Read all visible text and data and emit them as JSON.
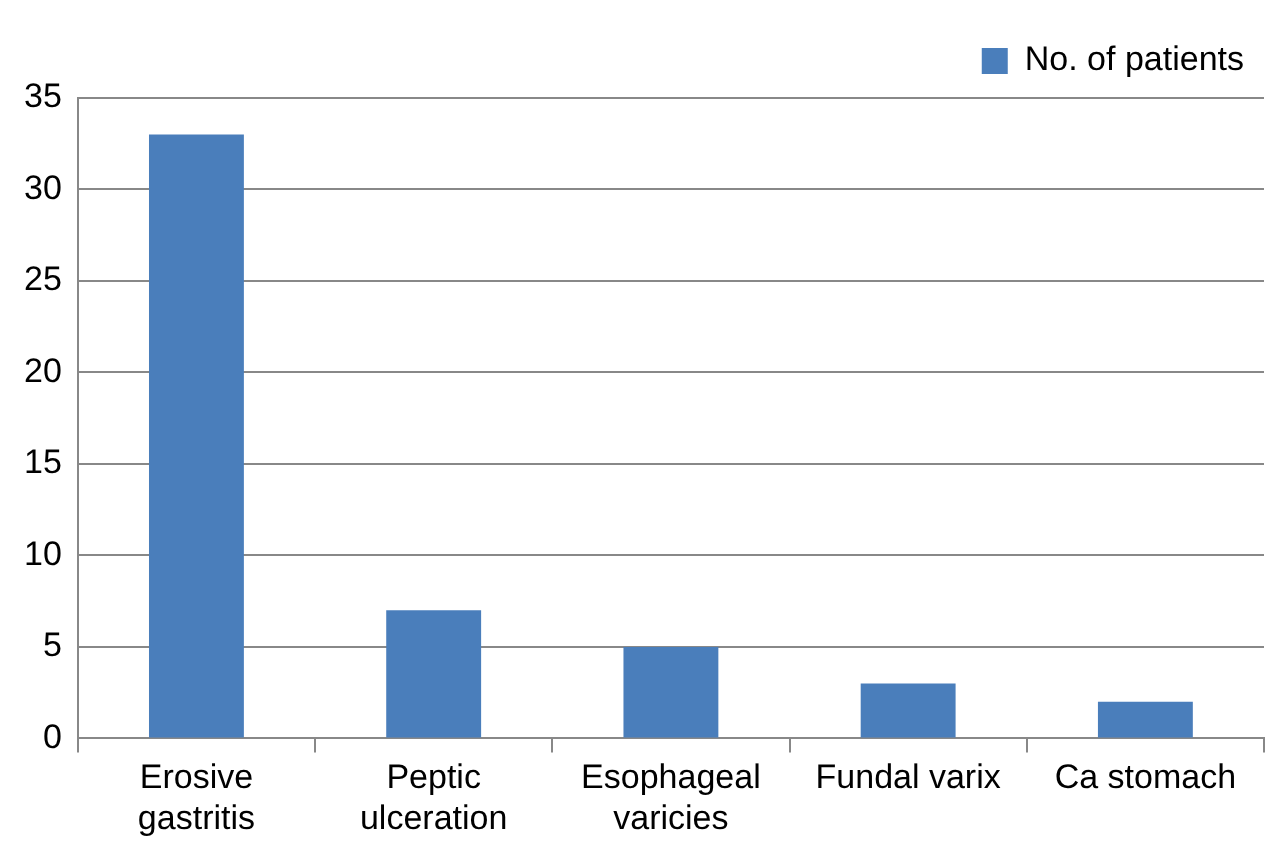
{
  "chart_data": {
    "type": "bar",
    "categories": [
      "Erosive gastritis",
      "Peptic ulceration",
      "Esophageal varicies",
      "Fundal varix",
      "Ca stomach"
    ],
    "series": [
      {
        "name": "No. of patients",
        "color": "#4a7ebb",
        "values": [
          33,
          7,
          5,
          3,
          2
        ]
      }
    ],
    "ylim": [
      0,
      35
    ],
    "yticks": [
      0,
      5,
      10,
      15,
      20,
      25,
      30,
      35
    ],
    "grid": "y",
    "legend": "top right"
  }
}
